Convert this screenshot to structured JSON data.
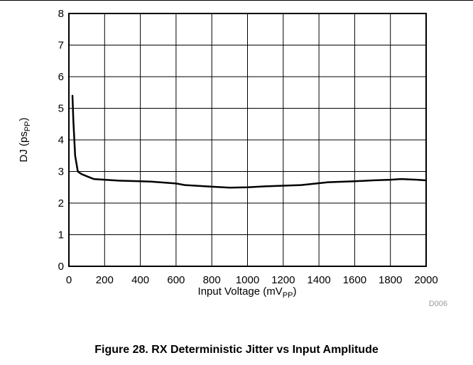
{
  "figure": {
    "caption": "Figure 28. RX Deterministic Jitter vs Input Amplitude",
    "code": "D006"
  },
  "chart_data": {
    "type": "line",
    "title": "",
    "xlabel": "Input Voltage (mVPP)",
    "xlabel_main": "Input Voltage (mV",
    "xlabel_sub": "PP",
    "xlabel_end": ")",
    "ylabel": "DJ (psPP)",
    "ylabel_main": "DJ (ps",
    "ylabel_sub": "PP",
    "ylabel_end": ")",
    "xlim": [
      0,
      2000
    ],
    "ylim": [
      0,
      8
    ],
    "x_ticks": [
      0,
      200,
      400,
      600,
      800,
      1000,
      1200,
      1400,
      1600,
      1800,
      2000
    ],
    "y_ticks": [
      0,
      1,
      2,
      3,
      4,
      5,
      6,
      7,
      8
    ],
    "grid": true,
    "series": [
      {
        "color": "#000000",
        "x": [
          20,
          25,
          35,
          50,
          70,
          100,
          140,
          200,
          280,
          400,
          460,
          600,
          650,
          800,
          900,
          1000,
          1100,
          1200,
          1300,
          1400,
          1450,
          1600,
          1700,
          1800,
          1860,
          1950,
          2000
        ],
        "y": [
          5.4,
          4.6,
          3.5,
          3.0,
          2.92,
          2.85,
          2.76,
          2.74,
          2.71,
          2.69,
          2.68,
          2.62,
          2.57,
          2.52,
          2.49,
          2.5,
          2.53,
          2.55,
          2.57,
          2.63,
          2.66,
          2.69,
          2.72,
          2.74,
          2.76,
          2.74,
          2.72
        ]
      }
    ]
  }
}
